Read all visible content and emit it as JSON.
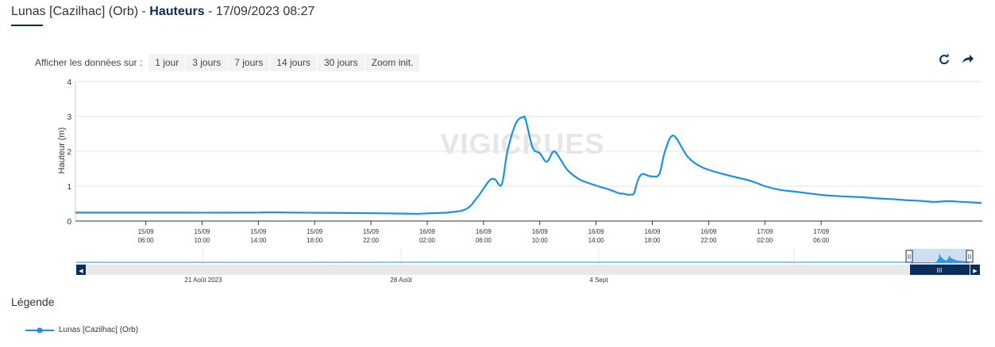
{
  "header": {
    "station": "Lunas [Cazilhac] (Orb)",
    "sep": " - ",
    "measure": "Hauteurs",
    "datetime": " - 17/09/2023 08:27"
  },
  "range_selector": {
    "label": "Afficher les données sur :",
    "buttons": [
      "1 jour",
      "3 jours",
      "7 jours",
      "14 jours",
      "30 jours",
      "Zoom init."
    ]
  },
  "toolbar": {
    "refresh_icon": "refresh-icon",
    "share_icon": "share-arrow-icon"
  },
  "watermark": "VIGICRUES",
  "legend": {
    "title": "Légende",
    "series_name": "Lunas [Cazilhac] (Orb)"
  },
  "colors": {
    "series": "#1f8fe0",
    "navy": "#0a2d5a",
    "grid": "#e6e6e6"
  },
  "chart_data": {
    "type": "line",
    "title": "Lunas [Cazilhac] (Orb) - Hauteurs - 17/09/2023 08:27",
    "ylabel": "Hauteur (m)",
    "xlabel": "",
    "ylim": [
      0,
      4
    ],
    "yticks": [
      0,
      1,
      2,
      3,
      4
    ],
    "xlim_hours": [
      0,
      64.45
    ],
    "x_hour_ticks": [
      5,
      9,
      13,
      17,
      21,
      25,
      29,
      33,
      37,
      41,
      45,
      49,
      53
    ],
    "x_tick_labels": [
      [
        "15/09",
        "06:00"
      ],
      [
        "15/09",
        "10:00"
      ],
      [
        "15/09",
        "14:00"
      ],
      [
        "15/09",
        "18:00"
      ],
      [
        "15/09",
        "22:00"
      ],
      [
        "16/09",
        "02:00"
      ],
      [
        "16/09",
        "06:00"
      ],
      [
        "16/09",
        "10:00"
      ],
      [
        "16/09",
        "14:00"
      ],
      [
        "16/09",
        "18:00"
      ],
      [
        "16/09",
        "22:00"
      ],
      [
        "17/09",
        "02:00"
      ],
      [
        "17/09",
        "06:00"
      ]
    ],
    "grid": true,
    "legend_position": "bottom-left",
    "series": [
      {
        "name": "Lunas [Cazilhac] (Orb)",
        "x": [
          0,
          4,
          8,
          12,
          14,
          16,
          20,
          24,
          25,
          26.6,
          27.8,
          28.6,
          29.4,
          29.8,
          30.3,
          30.7,
          31.3,
          31.8,
          32,
          32.5,
          33,
          33.5,
          34,
          34.5,
          35,
          35.8,
          36.6,
          37.3,
          37.8,
          38.3,
          38.6,
          39,
          39.2,
          39.5,
          39.7,
          40,
          40.3,
          40.7,
          41,
          41.5,
          41.9,
          42.5,
          43.5,
          44.5,
          46,
          48,
          49,
          50,
          51,
          52,
          53,
          54,
          55,
          56,
          57,
          58,
          59,
          60,
          61,
          62,
          63,
          64.4
        ],
        "y": [
          0.24,
          0.24,
          0.24,
          0.24,
          0.25,
          0.24,
          0.23,
          0.21,
          0.22,
          0.25,
          0.35,
          0.7,
          1.15,
          1.2,
          1.05,
          2.0,
          2.8,
          2.98,
          2.9,
          2.1,
          1.95,
          1.7,
          2.0,
          1.75,
          1.45,
          1.2,
          1.07,
          0.98,
          0.92,
          0.85,
          0.8,
          0.78,
          0.76,
          0.76,
          0.8,
          1.2,
          1.35,
          1.3,
          1.28,
          1.35,
          2.0,
          2.45,
          1.85,
          1.55,
          1.35,
          1.15,
          1.0,
          0.9,
          0.85,
          0.8,
          0.75,
          0.72,
          0.7,
          0.68,
          0.65,
          0.63,
          0.6,
          0.58,
          0.55,
          0.57,
          0.55,
          0.52
        ]
      }
    ]
  },
  "navigator": {
    "date_labels": [
      "21 Août 2023",
      "28 Août",
      "4 Sept"
    ],
    "grip_label": "III",
    "left_arrow": "◀",
    "right_arrow": "▶",
    "handle_label": "II"
  }
}
